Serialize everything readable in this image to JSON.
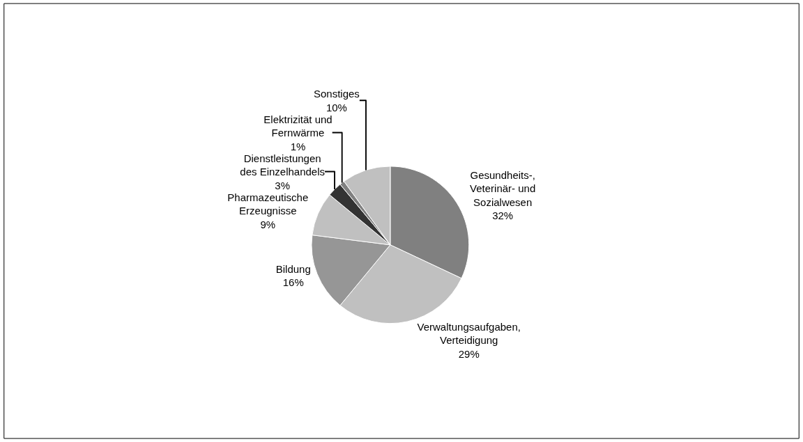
{
  "chart_data": {
    "type": "pie",
    "categories": [
      "Gesundheits-, Veterinär- und Sozialwesen",
      "Verwaltungsaufgaben, Verteidigung",
      "Bildung",
      "Pharmazeutische Erzeugnisse",
      "Dienstleistungen des Einzelhandels",
      "Elektrizität und Fernwärme",
      "Sonstiges"
    ],
    "values": [
      32,
      29,
      16,
      9,
      3,
      1,
      10
    ],
    "value_labels": [
      "32%",
      "29%",
      "16%",
      "9%",
      "3%",
      "1%",
      "10%"
    ],
    "colors": [
      "#808080",
      "#c0c0c0",
      "#969696",
      "#c0c0c0",
      "#333333",
      "#808080",
      "#c0c0c0"
    ],
    "legend": false
  }
}
